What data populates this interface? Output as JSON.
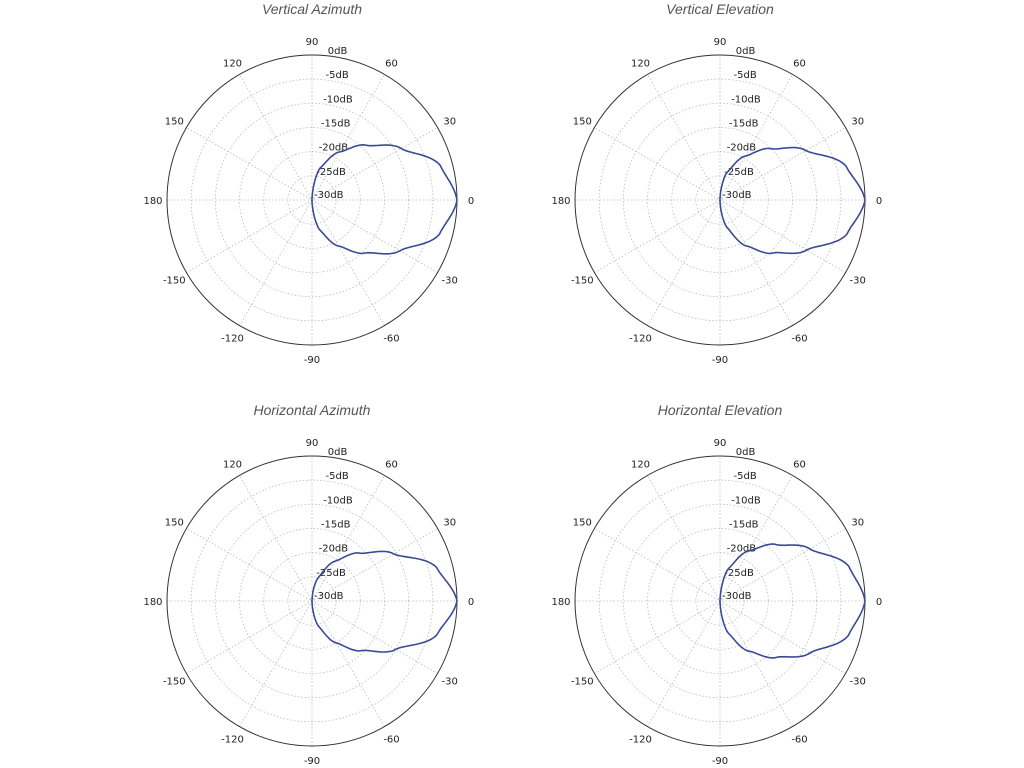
{
  "chart_data": [
    {
      "type": "line",
      "subtype": "polar",
      "title": "Vertical Azimuth",
      "angle_ticks": [
        "0",
        "30",
        "60",
        "90",
        "120",
        "150",
        "180",
        "-150",
        "-120",
        "-90",
        "-60",
        "-30"
      ],
      "radial_ticks": [
        "0dB",
        "-5dB",
        "-10dB",
        "-15dB",
        "-20dB",
        "-25dB",
        "-30dB"
      ],
      "rlim": [
        -30,
        0
      ],
      "grid": true,
      "series_color": "#3a4a96",
      "angles": [
        -90,
        -75,
        -60,
        -45,
        -30,
        -15,
        0,
        15,
        30,
        45,
        60,
        75,
        90
      ],
      "values_db": [
        -30,
        -23.5,
        -19,
        -14.5,
        -9,
        -2.7,
        0,
        -2.5,
        -8.7,
        -14,
        -18.5,
        -23,
        -30
      ]
    },
    {
      "type": "line",
      "subtype": "polar",
      "title": "Vertical Elevation",
      "angle_ticks": [
        "0",
        "30",
        "60",
        "90",
        "120",
        "150",
        "180",
        "-150",
        "-120",
        "-90",
        "-60",
        "-30"
      ],
      "radial_ticks": [
        "0dB",
        "-5dB",
        "-10dB",
        "-15dB",
        "-20dB",
        "-25dB",
        "-30dB"
      ],
      "rlim": [
        -30,
        0
      ],
      "grid": true,
      "series_color": "#3a4a96",
      "angles": [
        -90,
        -75,
        -60,
        -45,
        -30,
        -15,
        0,
        15,
        30,
        45,
        60,
        75,
        90
      ],
      "values_db": [
        -30,
        -24,
        -19,
        -14.5,
        -9.3,
        -2.8,
        0,
        -3,
        -9.5,
        -15,
        -19.5,
        -24,
        -30
      ]
    },
    {
      "type": "line",
      "subtype": "polar",
      "title": "Horizontal Azimuth",
      "angle_ticks": [
        "0",
        "30",
        "60",
        "90",
        "120",
        "150",
        "180",
        "-150",
        "-120",
        "-90",
        "-60",
        "-30"
      ],
      "radial_ticks": [
        "0dB",
        "-5dB",
        "-10dB",
        "-15dB",
        "-20dB",
        "-25dB",
        "-30dB"
      ],
      "rlim": [
        -30,
        0
      ],
      "grid": true,
      "series_color": "#3a4a96",
      "angles": [
        -90,
        -75,
        -60,
        -45,
        -30,
        -15,
        0,
        15,
        30,
        45,
        60,
        75,
        90
      ],
      "values_db": [
        -30,
        -24.5,
        -20,
        -15.5,
        -10,
        -3.2,
        0,
        -3.3,
        -10.5,
        -16,
        -20.5,
        -25,
        -30
      ]
    },
    {
      "type": "line",
      "subtype": "polar",
      "title": "Horizontal Elevation",
      "angle_ticks": [
        "0",
        "30",
        "60",
        "90",
        "120",
        "150",
        "180",
        "-150",
        "-120",
        "-90",
        "-60",
        "-30"
      ],
      "radial_ticks": [
        "0dB",
        "-5dB",
        "-10dB",
        "-15dB",
        "-20dB",
        "-25dB",
        "-30dB"
      ],
      "rlim": [
        -30,
        0
      ],
      "grid": true,
      "series_color": "#3a4a96",
      "angles": [
        -90,
        -75,
        -60,
        -45,
        -30,
        -15,
        0,
        15,
        30,
        45,
        60,
        75,
        90
      ],
      "values_db": [
        -30,
        -23,
        -18,
        -13.5,
        -8.5,
        -2.5,
        0,
        -2.4,
        -8.5,
        -13.5,
        -18,
        -23,
        -30
      ]
    }
  ]
}
